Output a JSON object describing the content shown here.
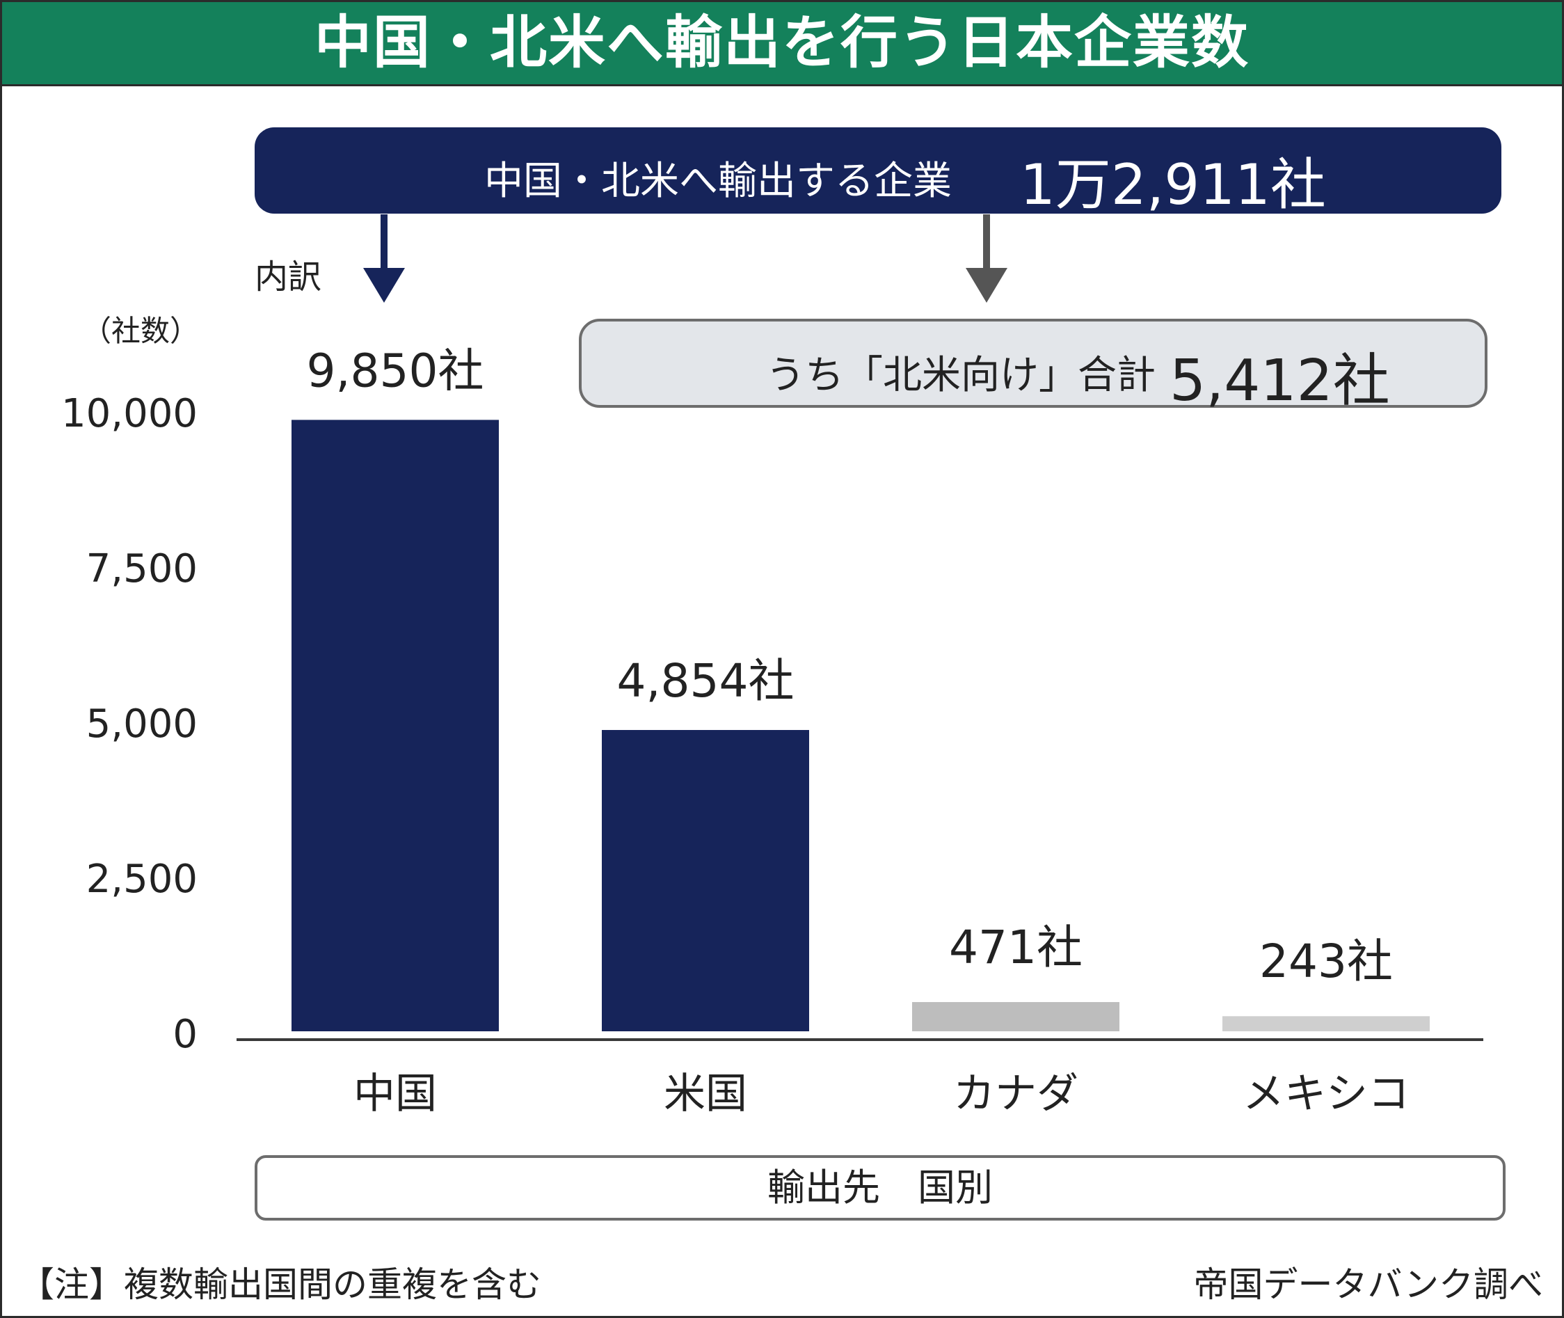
{
  "title": "中国・北米へ輸出を行う日本企業数",
  "summary": {
    "total_label": "中国・北米へ輸出する企業",
    "total_value": "1万2,911社",
    "na_label": "うち「北米向け」合計",
    "na_value": "5,412社",
    "breakdown_label": "内訳"
  },
  "footer": {
    "category_box_label": "輸出先　国別",
    "note": "【注】複数輸出国間の重複を含む",
    "source": "帝国データバンク調べ"
  },
  "colors": {
    "title_bar": "#14815b",
    "navy": "#16245a",
    "gray_bar": "#bdbdbd"
  },
  "chart_data": {
    "type": "bar",
    "ylabel": "（社数）",
    "ylim": [
      0,
      10000
    ],
    "yticks": [
      0,
      2500,
      5000,
      7500,
      10000
    ],
    "ytick_labels": [
      "0",
      "2,500",
      "5,000",
      "7,500",
      "10,000"
    ],
    "categories": [
      "中国",
      "米国",
      "カナダ",
      "メキシコ"
    ],
    "values": [
      9850,
      4854,
      471,
      243
    ],
    "data_labels": [
      "9,850社",
      "4,854社",
      "471社",
      "243社"
    ],
    "bar_colors": [
      "#16245a",
      "#16245a",
      "#bdbdbd",
      "#cfcfcf"
    ],
    "grid": false,
    "legend": "none"
  }
}
